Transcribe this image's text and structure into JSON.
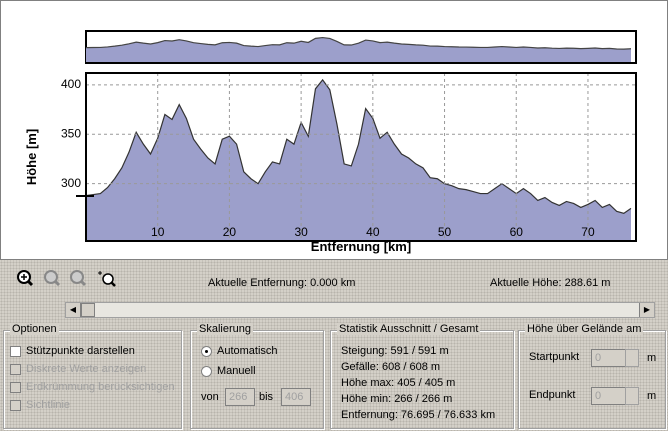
{
  "chart_data": {
    "type": "area",
    "x": [
      0,
      1,
      2,
      3,
      4,
      5,
      6,
      7,
      8,
      9,
      10,
      11,
      12,
      13,
      14,
      15,
      16,
      17,
      18,
      19,
      20,
      21,
      22,
      23,
      24,
      25,
      26,
      27,
      28,
      29,
      30,
      31,
      32,
      33,
      34,
      35,
      36,
      37,
      38,
      39,
      40,
      41,
      42,
      43,
      44,
      45,
      46,
      47,
      48,
      49,
      50,
      51,
      52,
      53,
      54,
      55,
      56,
      57,
      58,
      59,
      60,
      61,
      62,
      63,
      64,
      65,
      66,
      67,
      68,
      69,
      70,
      71,
      72,
      73,
      74,
      75,
      76
    ],
    "values": [
      288,
      289,
      290,
      296,
      305,
      316,
      332,
      352,
      340,
      330,
      346,
      370,
      365,
      380,
      366,
      345,
      335,
      326,
      320,
      345,
      348,
      340,
      312,
      305,
      300,
      312,
      322,
      320,
      345,
      340,
      362,
      348,
      396,
      405,
      395,
      360,
      320,
      318,
      340,
      376,
      366,
      346,
      352,
      340,
      330,
      326,
      320,
      316,
      306,
      305,
      300,
      298,
      295,
      294,
      292,
      290,
      290,
      295,
      300,
      295,
      290,
      295,
      290,
      283,
      286,
      281,
      278,
      282,
      280,
      276,
      279,
      283,
      276,
      279,
      272,
      270,
      275
    ],
    "xlabel": "Entfernung [km]",
    "ylabel": "Höhe [m]",
    "xlim": [
      0,
      76.7
    ],
    "ylim": [
      242,
      412
    ],
    "xticks": [
      10,
      20,
      30,
      40,
      50,
      60,
      70
    ],
    "yticks": [
      300,
      350,
      400
    ],
    "grid": true,
    "color": "#9c9fcb"
  },
  "toolbar": {
    "distance": "Aktuelle Entfernung: 0.000 km",
    "height": "Aktuelle Höhe: 288.61 m"
  },
  "options": {
    "title": "Optionen",
    "items": [
      "Stützpunkte darstellen",
      "Diskrete Werte anzeigen",
      "Erdkrümmung berücksichtigen",
      "Sichtlinie"
    ]
  },
  "scaling": {
    "title": "Skalierung",
    "auto": "Automatisch",
    "manual": "Manuell",
    "from_label": "von",
    "from": "266",
    "to_label": "bis",
    "to": "406"
  },
  "stats": {
    "title": "Statistik  Ausschnitt / Gesamt",
    "lines": [
      "Steigung: 591 / 591 m",
      "Gefälle: 608 / 608 m",
      "Höhe max: 405 / 405 m",
      "Höhe min: 266 / 266 m",
      "Entfernung: 76.695 / 76.633 km"
    ]
  },
  "ground": {
    "title": "Höhe über Gelände am",
    "start": "Startpunkt",
    "start_value": "0",
    "end": "Endpunkt",
    "end_value": "0",
    "unit": "m"
  }
}
